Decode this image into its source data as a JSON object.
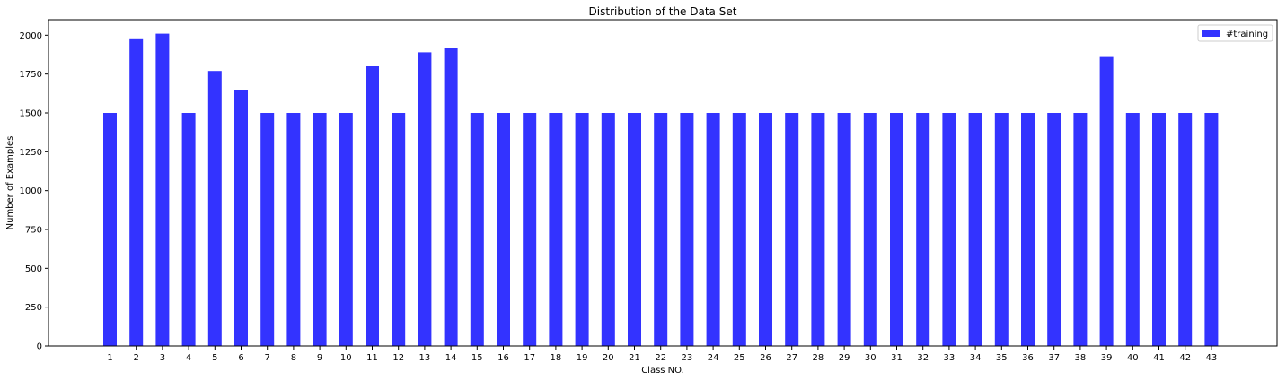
{
  "chart_data": {
    "type": "bar",
    "title": "Distribution of the Data Set",
    "xlabel": "Class NO.",
    "ylabel": "Number of Examples",
    "categories": [
      "1",
      "2",
      "3",
      "4",
      "5",
      "6",
      "7",
      "8",
      "9",
      "10",
      "11",
      "12",
      "13",
      "14",
      "15",
      "16",
      "17",
      "18",
      "19",
      "20",
      "21",
      "22",
      "23",
      "24",
      "25",
      "26",
      "27",
      "28",
      "29",
      "30",
      "31",
      "32",
      "33",
      "34",
      "35",
      "36",
      "37",
      "38",
      "39",
      "40",
      "41",
      "42",
      "43"
    ],
    "series": [
      {
        "name": "#training",
        "color": "#3333ff",
        "values": [
          1500,
          1980,
          2010,
          1500,
          1770,
          1650,
          1500,
          1500,
          1500,
          1500,
          1800,
          1500,
          1890,
          1920,
          1500,
          1500,
          1500,
          1500,
          1500,
          1500,
          1500,
          1500,
          1500,
          1500,
          1500,
          1500,
          1500,
          1500,
          1500,
          1500,
          1500,
          1500,
          1500,
          1500,
          1500,
          1500,
          1500,
          1500,
          1860,
          1500,
          1500,
          1500,
          1500
        ]
      }
    ],
    "yticks": [
      0,
      250,
      500,
      750,
      1000,
      1250,
      1500,
      1750,
      2000
    ],
    "ylim": [
      0,
      2100
    ],
    "grid": false,
    "legend_position": "top-right"
  }
}
